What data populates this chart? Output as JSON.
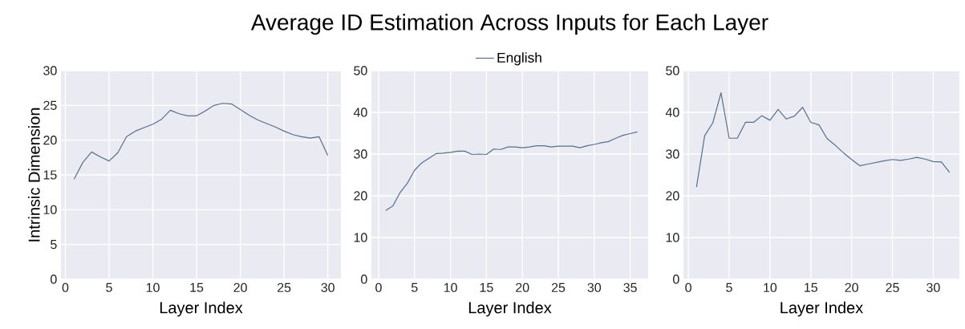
{
  "chart_data": [
    {
      "type": "line",
      "xlabel": "Layer Index",
      "ylabel": "Intrinsic Dimension",
      "x": [
        1,
        2,
        3,
        4,
        5,
        6,
        7,
        8,
        9,
        10,
        11,
        12,
        13,
        14,
        15,
        16,
        17,
        18,
        19,
        20,
        21,
        22,
        23,
        24,
        25,
        26,
        27,
        28,
        29,
        30
      ],
      "series": [
        {
          "color": "#56708c",
          "values": [
            14.4,
            16.8,
            18.3,
            17.6,
            17.0,
            18.2,
            20.5,
            21.3,
            21.8,
            22.3,
            23.0,
            24.3,
            23.8,
            23.5,
            23.5,
            24.2,
            25.0,
            25.3,
            25.2,
            24.4,
            23.6,
            22.9,
            22.4,
            21.9,
            21.3,
            20.8,
            20.5,
            20.3,
            20.5,
            17.8
          ]
        }
      ],
      "xlim": [
        -0.5,
        31.5
      ],
      "ylim": [
        0,
        30
      ],
      "xticks": [
        0,
        5,
        10,
        15,
        20,
        25,
        30
      ],
      "yticks": [
        0,
        5,
        10,
        15,
        20,
        25,
        30
      ],
      "grid": true,
      "line_style": "solid"
    },
    {
      "type": "line",
      "title": "Average ID Estimation Across Inputs for Each Layer",
      "xlabel": "Layer Index",
      "x": [
        1,
        2,
        3,
        4,
        5,
        6,
        7,
        8,
        9,
        10,
        11,
        12,
        13,
        14,
        15,
        16,
        17,
        18,
        19,
        20,
        21,
        22,
        23,
        24,
        25,
        26,
        27,
        28,
        29,
        30,
        31,
        32,
        33,
        34,
        35,
        36
      ],
      "series": [
        {
          "name": "English",
          "color": "#56708c",
          "values": [
            16.5,
            17.6,
            20.8,
            23.0,
            26.1,
            27.9,
            29.0,
            30.1,
            30.2,
            30.4,
            30.7,
            30.7,
            29.9,
            30.0,
            29.9,
            31.2,
            31.1,
            31.7,
            31.7,
            31.5,
            31.7,
            32.0,
            32.0,
            31.7,
            31.9,
            31.9,
            31.9,
            31.5,
            32.0,
            32.3,
            32.7,
            33.0,
            33.8,
            34.5,
            34.9,
            35.3
          ]
        }
      ],
      "xlim": [
        -1,
        37.5
      ],
      "ylim": [
        0,
        50
      ],
      "xticks": [
        0,
        5,
        10,
        15,
        20,
        25,
        30,
        35
      ],
      "yticks": [
        0,
        10,
        20,
        30,
        40,
        50
      ],
      "grid": true,
      "legend": "top",
      "line_style": "solid"
    },
    {
      "type": "line",
      "xlabel": "Layer Index",
      "x": [
        1,
        2,
        3,
        4,
        5,
        6,
        7,
        8,
        9,
        10,
        11,
        12,
        13,
        14,
        15,
        16,
        17,
        18,
        19,
        20,
        21,
        22,
        23,
        24,
        25,
        26,
        27,
        28,
        29,
        30,
        31,
        32
      ],
      "series": [
        {
          "color": "#56708c",
          "values": [
            22.1,
            34.4,
            37.5,
            44.7,
            33.8,
            33.8,
            37.6,
            37.6,
            39.2,
            38.1,
            40.7,
            38.4,
            39.1,
            41.2,
            37.6,
            37.0,
            33.7,
            32.1,
            30.3,
            28.7,
            27.2,
            27.6,
            28.0,
            28.4,
            28.7,
            28.5,
            28.8,
            29.2,
            28.8,
            28.2,
            28.1,
            25.6
          ]
        }
      ],
      "xlim": [
        -0.6,
        33.2
      ],
      "ylim": [
        0,
        50
      ],
      "xticks": [
        0,
        5,
        10,
        15,
        20,
        25,
        30
      ],
      "yticks": [
        0,
        10,
        20,
        30,
        40,
        50
      ],
      "grid": true,
      "line_style": "solid"
    }
  ]
}
